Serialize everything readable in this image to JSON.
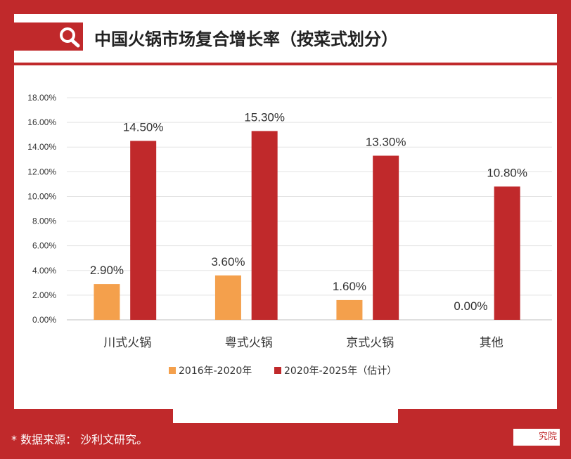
{
  "title": "中国火锅市场复合增长率（按菜式划分）",
  "footer": {
    "note": "* 数据来源：      沙利文研究。",
    "brand": "究院"
  },
  "icons": {
    "title_icon": "search-icon"
  },
  "colors": {
    "accent": "#c0292b",
    "series_2016": "#f4a04c",
    "series_2020": "#c0292b"
  },
  "chart_data": {
    "type": "bar",
    "title": "中国火锅市场复合增长率（按菜式划分）",
    "categories": [
      "川式火锅",
      "粤式火锅",
      "京式火锅",
      "其他"
    ],
    "series": [
      {
        "name": "2016年-2020年",
        "values": [
          2.9,
          3.6,
          1.6,
          0.0
        ],
        "labels": [
          "2.90%",
          "3.60%",
          "1.60%",
          "0.00%"
        ]
      },
      {
        "name": "2020年-2025年（估计）",
        "values": [
          14.5,
          15.3,
          13.3,
          10.8
        ],
        "labels": [
          "14.50%",
          "15.30%",
          "13.30%",
          "10.80%"
        ]
      }
    ],
    "yticks": [
      "0.00%",
      "2.00%",
      "4.00%",
      "6.00%",
      "8.00%",
      "10.00%",
      "12.00%",
      "14.00%",
      "16.00%",
      "18.00%"
    ],
    "ylim": [
      0,
      18
    ],
    "grid": true,
    "legend": "bottom"
  }
}
